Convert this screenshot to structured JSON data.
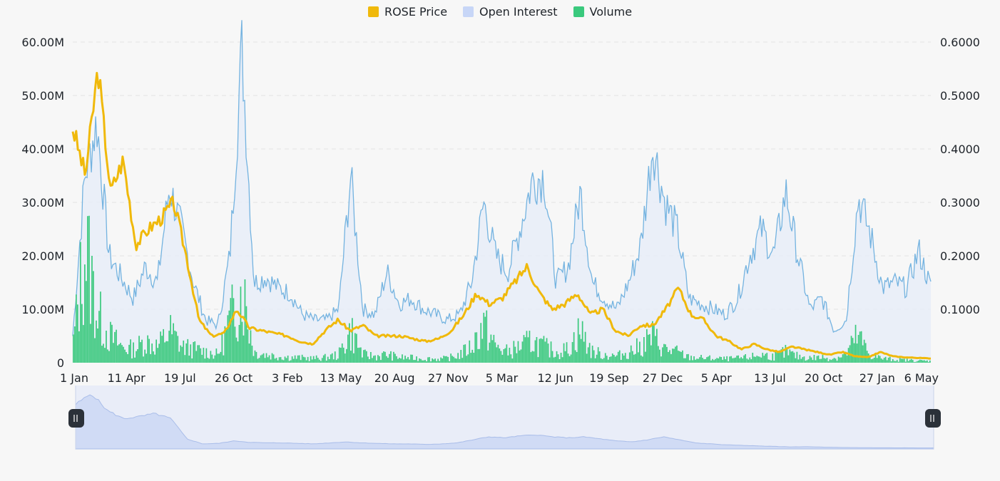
{
  "legend": [
    {
      "label": "ROSE Price",
      "color": "#f0b90b"
    },
    {
      "label": "Open Interest",
      "color": "#c7d6f7"
    },
    {
      "label": "Volume",
      "color": "#3ac97d"
    }
  ],
  "chart_data": {
    "type": "line",
    "title": "",
    "grid": true,
    "legend_position": "top-center",
    "x_ticks": [
      "1 Jan",
      "11 Apr",
      "19 Jul",
      "26 Oct",
      "3 Feb",
      "13 May",
      "20 Aug",
      "27 Nov",
      "5 Mar",
      "12 Jun",
      "19 Sep",
      "27 Dec",
      "5 Apr",
      "13 Jul",
      "20 Oct",
      "27 Jan",
      "6 May"
    ],
    "y_left": {
      "ticks": [
        "0",
        "10.00M",
        "20.00M",
        "30.00M",
        "40.00M",
        "50.00M",
        "60.00M"
      ],
      "ylim": [
        0,
        60000000
      ]
    },
    "y_right": {
      "ticks": [
        "0.1000",
        "0.2000",
        "0.3000",
        "0.4000",
        "0.5000",
        "0.6000"
      ],
      "ylim": [
        0,
        0.6
      ]
    },
    "series": [
      {
        "name": "ROSE Price",
        "axis": "right",
        "values": [
          0.44,
          0.35,
          0.55,
          0.32,
          0.38,
          0.22,
          0.25,
          0.27,
          0.3,
          0.2,
          0.08,
          0.05,
          0.055,
          0.1,
          0.065,
          0.06,
          0.055,
          0.05,
          0.04,
          0.035,
          0.06,
          0.08,
          0.06,
          0.07,
          0.05,
          0.05,
          0.05,
          0.045,
          0.04,
          0.045,
          0.06,
          0.09,
          0.13,
          0.11,
          0.12,
          0.15,
          0.18,
          0.13,
          0.1,
          0.11,
          0.13,
          0.09,
          0.1,
          0.06,
          0.05,
          0.07,
          0.07,
          0.1,
          0.14,
          0.09,
          0.08,
          0.05,
          0.04,
          0.025,
          0.035,
          0.025,
          0.02,
          0.03,
          0.025,
          0.02,
          0.015,
          0.02,
          0.012,
          0.01,
          0.02,
          0.012,
          0.01,
          0.009,
          0.008
        ]
      },
      {
        "name": "Open Interest",
        "axis": "left",
        "values": [
          5000000,
          35000000,
          45000000,
          20000000,
          16000000,
          12000000,
          18000000,
          15000000,
          33000000,
          25000000,
          15000000,
          8000000,
          7000000,
          20000000,
          59000000,
          15000000,
          16000000,
          14000000,
          13000000,
          9000000,
          8000000,
          8000000,
          10000000,
          35000000,
          10000000,
          9000000,
          17000000,
          11000000,
          12000000,
          10000000,
          9000000,
          8000000,
          9000000,
          15000000,
          30000000,
          20000000,
          17000000,
          25000000,
          34000000,
          35000000,
          15000000,
          18000000,
          32000000,
          15000000,
          12000000,
          10000000,
          15000000,
          22000000,
          41000000,
          30000000,
          25000000,
          12000000,
          11000000,
          10000000,
          9000000,
          12000000,
          20000000,
          25000000,
          20000000,
          32000000,
          20000000,
          10000000,
          12000000,
          6000000,
          8000000,
          31000000,
          24000000,
          14000000,
          15000000,
          14000000,
          21000000,
          14000000
        ]
      },
      {
        "name": "Volume",
        "axis": "left",
        "values": [
          4000000,
          22000000,
          9000000,
          5000000,
          3000000,
          2500000,
          4000000,
          3000000,
          6000000,
          3000000,
          2500000,
          2000000,
          1500000,
          8000000,
          14000000,
          2000000,
          1500000,
          1200000,
          1000000,
          900000,
          800000,
          1000000,
          1500000,
          6000000,
          1500000,
          1200000,
          1500000,
          1000000,
          900000,
          800000,
          700000,
          800000,
          1500000,
          3000000,
          7000000,
          3000000,
          2000000,
          3000000,
          4000000,
          3000000,
          2000000,
          2500000,
          6000000,
          2000000,
          1500000,
          1200000,
          2000000,
          3000000,
          5000000,
          2500000,
          2000000,
          1000000,
          900000,
          800000,
          700000,
          800000,
          1000000,
          1500000,
          1200000,
          2000000,
          1200000,
          900000,
          1000000,
          800000,
          1500000,
          5000000,
          1500000,
          800000,
          600000,
          500000,
          400000,
          300000
        ]
      }
    ]
  },
  "navigator": {
    "values": [
      0.44,
      0.55,
      0.38,
      0.3,
      0.32,
      0.35,
      0.3,
      0.1,
      0.05,
      0.055,
      0.08,
      0.065,
      0.06,
      0.06,
      0.055,
      0.05,
      0.06,
      0.07,
      0.06,
      0.055,
      0.05,
      0.05,
      0.045,
      0.05,
      0.06,
      0.09,
      0.12,
      0.11,
      0.13,
      0.14,
      0.12,
      0.11,
      0.12,
      0.1,
      0.08,
      0.07,
      0.09,
      0.12,
      0.09,
      0.06,
      0.05,
      0.04,
      0.035,
      0.03,
      0.025,
      0.02,
      0.022,
      0.018,
      0.015,
      0.013,
      0.012,
      0.011,
      0.011,
      0.01,
      0.01
    ],
    "ylim": [
      0,
      0.6
    ]
  }
}
